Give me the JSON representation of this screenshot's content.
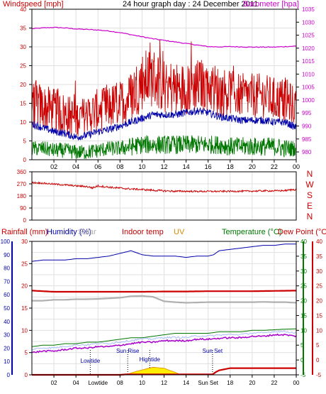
{
  "colors": {
    "background": "#FFFFFF",
    "plot_bg": "#FFFFFF",
    "grid": "#E0E0E0",
    "axis_red": "#CC0000",
    "magenta": "#CC00CC",
    "blue": "#0000AA",
    "green": "#007700",
    "orange": "#DD8800",
    "yellow": "#FFEE00",
    "gray": "#B0B0B0",
    "lightblue": "#AABBFF",
    "purple": "#AA00CC",
    "dark": "#000000"
  },
  "chart_data": [
    {
      "id": "wind-baro",
      "type": "line",
      "title": "24 hour graph day : 24 December 2011",
      "left_axis_label": "Windspeed [mph]",
      "right_axis_label": "Barometer [hpa]",
      "left_ticks": [
        "40",
        "35",
        "30",
        "25",
        "20",
        "15",
        "10",
        "5",
        "0"
      ],
      "right_ticks": [
        "1035",
        "1030",
        "1025",
        "1020",
        "1015",
        "1010",
        "1005",
        "1000",
        "995",
        "990",
        "985",
        "980"
      ],
      "x_ticks": [
        "02",
        "04",
        "06",
        "08",
        "10",
        "12",
        "14",
        "16",
        "18",
        "20",
        "22",
        "00"
      ],
      "ylim_left": [
        0,
        40
      ],
      "ylim_right": [
        977,
        1035
      ],
      "xlim": [
        0,
        24
      ],
      "grid": true,
      "series": [
        {
          "key": "barometer",
          "axis": "right",
          "color_key": "magenta",
          "x": [
            0,
            1,
            2,
            3,
            4,
            5,
            6,
            7,
            8,
            9,
            10,
            11,
            12,
            13,
            14,
            15,
            16,
            17,
            18,
            19,
            20,
            21,
            22,
            23,
            24
          ],
          "y": [
            1027.5,
            1027.8,
            1028,
            1027.8,
            1027.4,
            1027.2,
            1027,
            1026.6,
            1026,
            1025.2,
            1024.4,
            1023.6,
            1023,
            1022.4,
            1021.8,
            1021.2,
            1020.6,
            1020.5,
            1020.6,
            1020.5,
            1020.4,
            1020.4,
            1020.4,
            1020.6,
            1020.8
          ]
        },
        {
          "key": "gust",
          "axis": "left",
          "color_key": "axis_red",
          "x": [
            0,
            1,
            2,
            3,
            4,
            5,
            6,
            7,
            8,
            9,
            10,
            11,
            12,
            13,
            14,
            15,
            16,
            17,
            18,
            19,
            20,
            21,
            22,
            23,
            24
          ],
          "y": [
            15,
            14,
            13,
            12,
            11,
            12,
            13,
            14,
            15,
            17,
            21,
            22,
            20,
            19,
            19,
            20,
            20,
            18,
            18,
            17,
            17,
            17,
            16,
            16,
            14
          ],
          "amp": [
            7,
            6,
            6,
            6,
            5,
            5,
            6,
            6,
            6,
            7,
            8,
            8,
            8,
            7,
            7,
            7,
            7,
            7,
            6,
            6,
            6,
            6,
            6,
            6,
            5
          ]
        },
        {
          "key": "average",
          "axis": "left",
          "color_key": "blue",
          "x": [
            0,
            1,
            2,
            3,
            4,
            5,
            6,
            7,
            8,
            9,
            10,
            11,
            12,
            13,
            14,
            15,
            16,
            17,
            18,
            19,
            20,
            21,
            22,
            23,
            24
          ],
          "y": [
            9.5,
            8.5,
            7.5,
            7,
            6,
            6.5,
            7.5,
            8,
            9,
            10,
            11,
            12,
            12,
            12,
            12.5,
            13,
            12.5,
            11.5,
            11,
            10.5,
            10.5,
            10.5,
            10,
            10,
            8.5
          ],
          "amp": [
            1,
            1,
            1,
            1,
            1,
            1,
            1,
            1,
            1,
            1,
            1,
            1,
            1,
            1,
            1,
            1,
            1,
            1,
            1,
            1,
            1,
            1,
            1,
            1,
            1
          ]
        },
        {
          "key": "wind",
          "axis": "left",
          "color_key": "green",
          "x": [
            0,
            1,
            2,
            3,
            4,
            5,
            6,
            7,
            8,
            9,
            10,
            11,
            12,
            13,
            14,
            15,
            16,
            17,
            18,
            19,
            20,
            21,
            22,
            23,
            24
          ],
          "y": [
            3,
            3,
            2.5,
            2.5,
            2,
            2,
            2.5,
            3,
            3,
            3.5,
            4,
            4,
            4,
            4,
            4,
            4,
            4,
            4,
            3.5,
            3.5,
            3.5,
            3.5,
            3.5,
            3,
            3
          ],
          "amp": [
            2,
            2,
            2,
            2,
            2,
            2,
            2,
            2,
            2,
            2.5,
            2.5,
            2.5,
            2.5,
            2.5,
            2.5,
            2.5,
            2.5,
            2.5,
            2.5,
            2.5,
            2.5,
            2.5,
            2.5,
            2.5,
            2
          ]
        }
      ]
    },
    {
      "id": "direction",
      "type": "line",
      "left_ticks": [
        "360",
        "270",
        "180",
        "90",
        "0"
      ],
      "right_labels": [
        "N",
        "W",
        "S",
        "E",
        "N"
      ],
      "ylim": [
        0,
        360
      ],
      "xlim": [
        0,
        24
      ],
      "grid": true,
      "series": [
        {
          "key": "direction",
          "color_key": "axis_red",
          "x": [
            0,
            1,
            2,
            3,
            4,
            5,
            5.5,
            6,
            7,
            8,
            9,
            10,
            11,
            12,
            13,
            14,
            15,
            16,
            17,
            18,
            19,
            20,
            21,
            22,
            23,
            24
          ],
          "y": [
            280,
            275,
            268,
            262,
            255,
            250,
            240,
            255,
            245,
            238,
            232,
            228,
            222,
            218,
            215,
            215,
            214,
            214,
            214,
            215,
            215,
            216,
            218,
            218,
            220,
            230
          ],
          "amp": [
            6,
            6,
            6,
            6,
            6,
            7,
            7,
            8,
            7,
            7,
            7,
            7,
            7,
            7,
            7,
            6,
            6,
            6,
            6,
            6,
            6,
            6,
            6,
            6,
            6,
            8
          ]
        }
      ]
    },
    {
      "id": "multi",
      "type": "line",
      "legend": [
        "Rainfall (mm)",
        "Humidity (%)",
        "Solar",
        "Indoor temp",
        "UV",
        "Temperature (°C)",
        "Dew Point (°C)"
      ],
      "rain_ticks": [
        "30",
        "25",
        "20",
        "15",
        "10",
        "5",
        "0"
      ],
      "hum_ticks": [
        "100",
        "90",
        "80",
        "70",
        "60",
        "50",
        "40",
        "30",
        "20",
        "10",
        "0"
      ],
      "temp_ticks": [
        "40",
        "35",
        "30",
        "25",
        "20",
        "15",
        "10",
        "5",
        "0",
        "-5"
      ],
      "dew_ticks": [
        "40",
        "35",
        "30",
        "25",
        "20",
        "15",
        "10",
        "5",
        "0",
        "-5"
      ],
      "x_ticks": [
        "02",
        "04",
        "Lowtide",
        "08",
        "10",
        "12",
        "14",
        "Sun Set",
        "18",
        "20",
        "22",
        "00"
      ],
      "annotations": [
        {
          "text": "Lowtide",
          "x": 5.3
        },
        {
          "text": "Sun Rise",
          "x": 8.7
        },
        {
          "text": "Hightide",
          "x": 10.7
        },
        {
          "text": "Sun Set",
          "x": 16.4
        }
      ],
      "ylim_rain": [
        0,
        30
      ],
      "ylim_temp": [
        -5,
        40
      ],
      "xlim": [
        0,
        24
      ],
      "grid": true,
      "series": [
        {
          "key": "humidity",
          "axis": "hum",
          "color_key": "blue",
          "x": [
            0,
            1,
            2,
            3,
            4,
            5,
            6,
            7,
            8,
            9,
            10,
            11,
            12,
            13,
            14,
            15,
            16,
            16.5,
            17,
            18,
            19,
            20,
            21,
            22,
            23,
            24
          ],
          "y": [
            85,
            86,
            86,
            86,
            87,
            87,
            88,
            89,
            91,
            93,
            90,
            89,
            89,
            89,
            88,
            89,
            89,
            90,
            93,
            94,
            95,
            96,
            97,
            97,
            98,
            98
          ]
        },
        {
          "key": "indoor",
          "axis": "temp",
          "color_key": "axis_red",
          "x": [
            0,
            2,
            4,
            6,
            8,
            10,
            12,
            14,
            16,
            18,
            20,
            22,
            24
          ],
          "y": [
            23.4,
            23,
            23,
            23,
            23,
            23,
            23.1,
            23.1,
            23.2,
            23.2,
            23.2,
            23.3,
            23.4
          ]
        },
        {
          "key": "solar",
          "axis": "temp",
          "color_key": "gray",
          "x": [
            0,
            1,
            2,
            3,
            4,
            5,
            6,
            7,
            8,
            9,
            10,
            11,
            12,
            13,
            14,
            15,
            16,
            17,
            18,
            19,
            20,
            21,
            22,
            23,
            24
          ],
          "y": [
            20,
            20,
            20.3,
            20.3,
            20.5,
            20.5,
            20.6,
            20.8,
            21,
            21.5,
            21.6,
            21.3,
            19.8,
            19.5,
            19.3,
            19.4,
            19.5,
            19.5,
            19.5,
            19.5,
            19.5,
            19.6,
            19.5,
            19.5,
            19.3
          ]
        },
        {
          "key": "temperature",
          "axis": "temp",
          "color_key": "green",
          "x": [
            0,
            1,
            2,
            3,
            4,
            5,
            6,
            7,
            8,
            9,
            10,
            11,
            12,
            13,
            14,
            15,
            16,
            17,
            18,
            19,
            20,
            21,
            22,
            23,
            24
          ],
          "y": [
            4.5,
            5,
            5,
            5.5,
            5.5,
            6,
            6,
            6.5,
            7,
            7.5,
            7.5,
            8,
            8.5,
            9,
            9,
            9,
            9,
            9.5,
            9.5,
            9.5,
            10,
            10,
            10.2,
            10.4,
            10.5
          ]
        },
        {
          "key": "dewpoint",
          "axis": "temp",
          "color_key": "purple",
          "x": [
            0,
            1,
            2,
            3,
            4,
            5,
            6,
            7,
            8,
            9,
            10,
            11,
            12,
            13,
            14,
            15,
            16,
            17,
            18,
            19,
            20,
            21,
            22,
            23,
            24
          ],
          "y": [
            2.5,
            3,
            3,
            3.5,
            4,
            4,
            4.5,
            4.5,
            5,
            5.5,
            6,
            6,
            6.5,
            6.5,
            6.5,
            7,
            7,
            7.3,
            7.5,
            7.5,
            8,
            8,
            8.5,
            8.5,
            8
          ]
        },
        {
          "key": "uv_fill",
          "axis": "rain",
          "color_key": "yellow",
          "x": [
            8.5,
            9,
            9.5,
            10,
            10.5,
            11,
            11.5,
            12,
            12.5,
            13,
            13.5
          ],
          "y": [
            0,
            0.4,
            0.8,
            1.1,
            1.4,
            1.7,
            1.6,
            1.5,
            1.0,
            0.6,
            0
          ]
        },
        {
          "key": "rainfall",
          "axis": "rain",
          "color_key": "axis_red",
          "x": [
            0,
            8,
            8.5,
            9,
            9.5,
            16.4,
            16.7,
            17,
            18,
            19,
            20,
            21,
            22,
            23,
            24
          ],
          "y": [
            0,
            0,
            0.1,
            0.1,
            0.1,
            0.1,
            0.6,
            1.0,
            1.5,
            1.5,
            1.5,
            1.5,
            1.5,
            1.5,
            1.5
          ]
        }
      ]
    }
  ]
}
